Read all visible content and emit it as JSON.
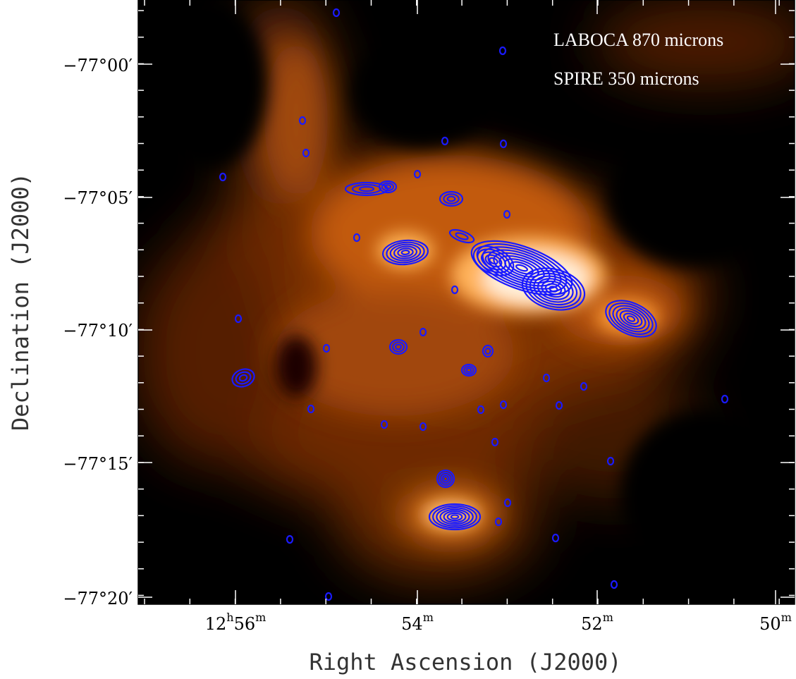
{
  "legend": {
    "line1": "LABOCA 870 microns",
    "line2": "SPIRE 350 microns"
  },
  "axes": {
    "xlabel": "Right Ascension (J2000)",
    "ylabel": "Declination (J2000)",
    "x_ticks": [
      {
        "h": "12",
        "m": "56"
      },
      {
        "h": "",
        "m": "54"
      },
      {
        "h": "",
        "m": "52"
      },
      {
        "h": "",
        "m": "50"
      }
    ],
    "y_ticks": [
      "−77°00′",
      "−77°05′",
      "−77°10′",
      "−77°15′",
      "−77°20′"
    ]
  },
  "colors": {
    "contour": "#1a1aff",
    "background_map": "orange-heat",
    "ticks": "#ffffff"
  }
}
